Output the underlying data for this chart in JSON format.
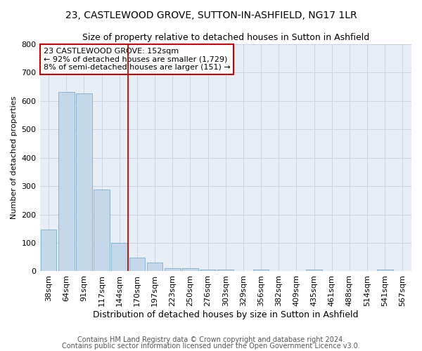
{
  "title": "23, CASTLEWOOD GROVE, SUTTON-IN-ASHFIELD, NG17 1LR",
  "subtitle": "Size of property relative to detached houses in Sutton in Ashfield",
  "xlabel": "Distribution of detached houses by size in Sutton in Ashfield",
  "ylabel": "Number of detached properties",
  "footnote1": "Contains HM Land Registry data © Crown copyright and database right 2024.",
  "footnote2": "Contains public sector information licensed under the Open Government Licence v3.0.",
  "categories": [
    "38sqm",
    "64sqm",
    "91sqm",
    "117sqm",
    "144sqm",
    "170sqm",
    "197sqm",
    "223sqm",
    "250sqm",
    "276sqm",
    "303sqm",
    "329sqm",
    "356sqm",
    "382sqm",
    "409sqm",
    "435sqm",
    "461sqm",
    "488sqm",
    "514sqm",
    "541sqm",
    "567sqm"
  ],
  "values": [
    148,
    632,
    628,
    287,
    101,
    47,
    30,
    10,
    11,
    5,
    5,
    0,
    5,
    0,
    0,
    5,
    0,
    0,
    0,
    5,
    0
  ],
  "bar_color": "#c5d8ea",
  "bar_edge_color": "#7aaac8",
  "ylim_min": 0,
  "ylim_max": 800,
  "yticks": [
    0,
    100,
    200,
    300,
    400,
    500,
    600,
    700,
    800
  ],
  "vline_position": 4.5,
  "property_line_label": "23 CASTLEWOOD GROVE: 152sqm",
  "annotation_line1": "← 92% of detached houses are smaller (1,729)",
  "annotation_line2": "8% of semi-detached houses are larger (151) →",
  "annotation_box_color": "#cc0000",
  "vline_color": "#cc0000",
  "grid_color": "#c8d4e4",
  "bg_color": "#e8eef5",
  "title_fontsize": 10,
  "subtitle_fontsize": 9,
  "xlabel_fontsize": 9,
  "ylabel_fontsize": 8,
  "tick_fontsize": 8,
  "annotation_fontsize": 8,
  "footnote_fontsize": 7
}
